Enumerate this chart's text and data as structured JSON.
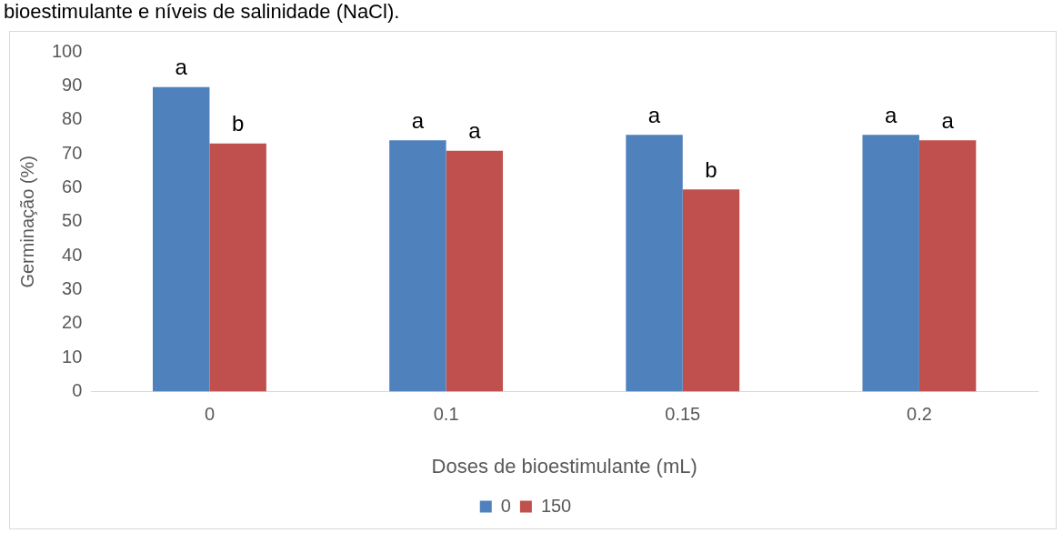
{
  "chart_data": {
    "type": "bar",
    "title": "bioestimulante e níveis de salinidade (NaCl).",
    "xlabel": "Doses de bioestimulante (mL)",
    "ylabel": "Germinação (%)",
    "categories": [
      "0",
      "0.1",
      "0.15",
      "0.2"
    ],
    "series": [
      {
        "name": "0",
        "color": "#4f81bd",
        "values": [
          89.6,
          74,
          75.6,
          75.6
        ],
        "value_labels": [
          "a",
          "a",
          "a",
          "a"
        ]
      },
      {
        "name": "150",
        "color": "#c0504d",
        "values": [
          73,
          70.9,
          59.5,
          74
        ],
        "value_labels": [
          "b",
          "a",
          "b",
          "a"
        ]
      }
    ],
    "ylim": [
      0,
      100
    ],
    "yticks": [
      0,
      10,
      20,
      30,
      40,
      50,
      60,
      70,
      80,
      90,
      100
    ],
    "grid": false,
    "legend": "bottom"
  }
}
